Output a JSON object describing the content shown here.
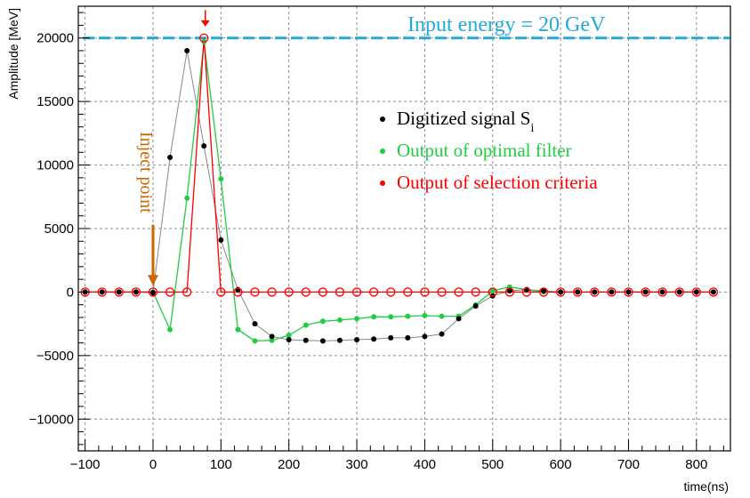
{
  "chart_data": {
    "type": "scatter",
    "title": "",
    "xlabel": "time(ns)",
    "ylabel": "Amplitude [MeV]",
    "xlim": [
      -110,
      850
    ],
    "ylim": [
      -12500,
      22500
    ],
    "xticks": [
      -100,
      0,
      100,
      200,
      300,
      400,
      500,
      600,
      700,
      800
    ],
    "yticks": [
      -10000,
      -5000,
      0,
      5000,
      10000,
      15000,
      20000
    ],
    "xtick_labels": [
      "−100",
      "0",
      "100",
      "200",
      "300",
      "400",
      "500",
      "600",
      "700",
      "800"
    ],
    "ytick_labels": [
      "−10000",
      "−5000",
      "0",
      "5000",
      "10000",
      "15000",
      "20000"
    ],
    "grid": true,
    "legend_position": "middle-right",
    "series": [
      {
        "name": "Digitized signal S",
        "name_subscript": "i",
        "color": "#000000",
        "marker": "filled-circle",
        "line_color": "#888888",
        "x": [
          -100,
          -75,
          -50,
          -25,
          0,
          25,
          50,
          75,
          100,
          125,
          150,
          175,
          200,
          225,
          250,
          275,
          300,
          325,
          350,
          375,
          400,
          425,
          450,
          475,
          500,
          525,
          550,
          575,
          600,
          625,
          650,
          675,
          700,
          725,
          750,
          775,
          800,
          825
        ],
        "y": [
          0,
          0,
          0,
          0,
          -50,
          10600,
          19000,
          11500,
          4100,
          200,
          -2500,
          -3500,
          -3750,
          -3800,
          -3850,
          -3800,
          -3750,
          -3700,
          -3600,
          -3600,
          -3500,
          -3300,
          -2100,
          -1100,
          -300,
          100,
          200,
          100,
          0,
          0,
          0,
          0,
          0,
          0,
          0,
          0,
          0,
          0
        ]
      },
      {
        "name": "Output of optimal filter",
        "color": "#22cc44",
        "marker": "filled-circle",
        "line_color": "#22cc44",
        "x": [
          -100,
          -75,
          -50,
          -25,
          0,
          25,
          50,
          75,
          100,
          125,
          150,
          175,
          200,
          225,
          250,
          275,
          300,
          325,
          350,
          375,
          400,
          425,
          450,
          475,
          500,
          525,
          550,
          575,
          600,
          625,
          650,
          675,
          700,
          725,
          750,
          775,
          800,
          825
        ],
        "y": [
          0,
          0,
          0,
          0,
          0,
          -2950,
          7400,
          19700,
          8900,
          -2950,
          -3850,
          -3800,
          -3400,
          -2600,
          -2300,
          -2200,
          -2100,
          -1950,
          -1950,
          -1900,
          -1850,
          -1900,
          -1900,
          -1000,
          100,
          400,
          200,
          0,
          0,
          0,
          0,
          0,
          0,
          0,
          0,
          0,
          0,
          0
        ]
      },
      {
        "name": "Output of selection criteria",
        "color": "#ff0000",
        "marker": "open-circle",
        "line_color": "#ff0000",
        "x": [
          -100,
          -75,
          -50,
          -25,
          0,
          25,
          50,
          75,
          100,
          125,
          150,
          175,
          200,
          225,
          250,
          275,
          300,
          325,
          350,
          375,
          400,
          425,
          450,
          475,
          500,
          525,
          550,
          575,
          600,
          625,
          650,
          675,
          700,
          725,
          750,
          775,
          800,
          825
        ],
        "y": [
          0,
          0,
          0,
          0,
          0,
          0,
          0,
          20000,
          0,
          0,
          0,
          0,
          0,
          0,
          0,
          0,
          0,
          0,
          0,
          0,
          0,
          0,
          0,
          0,
          0,
          0,
          0,
          0,
          0,
          0,
          0,
          0,
          0,
          0,
          0,
          0,
          0,
          0
        ]
      }
    ],
    "reference_line": {
      "label": "Input energy = 20 GeV",
      "value": 20000,
      "color": "#22aadd"
    },
    "annotations": [
      {
        "text": "Inject point",
        "x": 0,
        "y_from": 5300,
        "y_to": 500,
        "color": "#cc6600"
      },
      {
        "text": "",
        "x": 77,
        "y_from": 22200,
        "y_to": 20900,
        "color": "#ff0000"
      }
    ]
  }
}
